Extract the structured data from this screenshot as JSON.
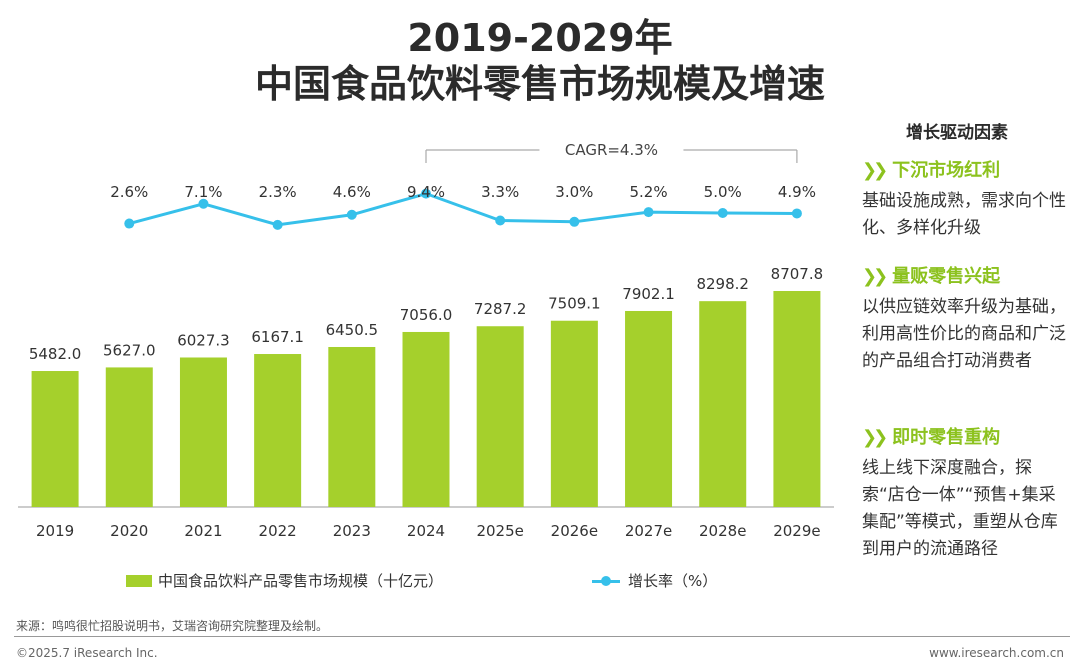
{
  "title_line1": "2019-2029年",
  "title_line2": "中国食品饮料零售市场规模及增速",
  "chart_data": {
    "type": "bar",
    "categories": [
      "2019",
      "2020",
      "2021",
      "2022",
      "2023",
      "2024",
      "2025e",
      "2026e",
      "2027e",
      "2028e",
      "2029e"
    ],
    "bar_series": {
      "name": "中国食品饮料产品零售市场规模（十亿元）",
      "values": [
        5482.0,
        5627.0,
        6027.3,
        6167.1,
        6450.5,
        7056.0,
        7287.2,
        7509.1,
        7902.1,
        8298.2,
        8707.8
      ]
    },
    "bar_labels": [
      "5482.0",
      "5627.0",
      "6027.3",
      "6167.1",
      "6450.5",
      "7056.0",
      "7287.2",
      "7509.1",
      "7902.1",
      "8298.2",
      "8707.8"
    ],
    "line_series": {
      "name": "增长率（%）",
      "values": [
        2.6,
        7.1,
        2.3,
        4.6,
        9.4,
        3.3,
        3.0,
        5.2,
        5.0,
        4.9
      ]
    },
    "line_labels": [
      "2.6%",
      "7.1%",
      "2.3%",
      "4.6%",
      "9.4%",
      "3.3%",
      "3.0%",
      "5.2%",
      "5.0%",
      "4.9%"
    ],
    "cagr_label": "CAGR=4.3%",
    "cagr_span": [
      "2024",
      "2029e"
    ],
    "ylim_bar": [
      0,
      9000
    ],
    "colors": {
      "bar": "#a5d02c",
      "line": "#36c0ea",
      "axis": "#999999"
    }
  },
  "legend": {
    "bar": "中国食品饮料产品零售市场规模（十亿元）",
    "line": "增长率（%）"
  },
  "side": {
    "heading": "增长驱动因素",
    "chevron": "❯❯",
    "drivers": [
      {
        "title": "下沉市场红利",
        "desc": "基础设施成熟，需求向个性化、多样化升级"
      },
      {
        "title": "量贩零售兴起",
        "desc": "以供应链效率升级为基础，利用高性价比的商品和广泛的产品组合打动消费者"
      },
      {
        "title": "即时零售重构",
        "desc": "线上线下深度融合，探索“店仓一体”“预售+集采集配”等模式，重塑从仓库到用户的流通路径"
      }
    ]
  },
  "footer": {
    "source": "来源：鸣鸣很忙招股说明书，艾瑞咨询研究院整理及绘制。",
    "copyright": "©2025.7 iResearch Inc.",
    "website": "www.iresearch.com.cn"
  }
}
